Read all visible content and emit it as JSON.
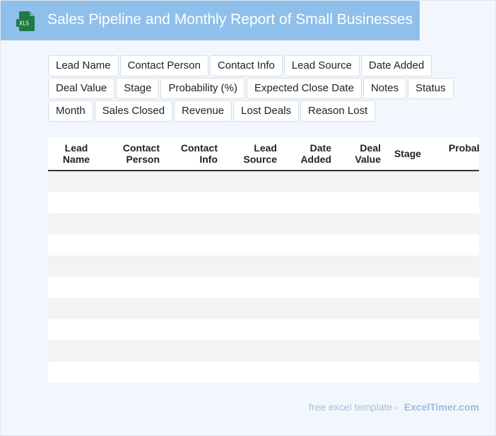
{
  "header": {
    "title": "Sales Pipeline and Monthly Report of Small Businesses",
    "icon_label": "XLS",
    "background_color": "#8fc0ec",
    "icon_color": "#1e7a45"
  },
  "chips": [
    [
      "Lead Name",
      "Contact Person",
      "Contact Info",
      "Lead Source",
      "Date Added"
    ],
    [
      "Deal Value",
      "Stage",
      "Probability (%)",
      "Expected Close Date",
      "Notes",
      "Status"
    ],
    [
      "Month",
      "Sales Closed",
      "Revenue",
      "Lost Deals",
      "Reason Lost"
    ]
  ],
  "table": {
    "headers": [
      [
        "Lead",
        "Name"
      ],
      [
        "Contact",
        "Person"
      ],
      [
        "Contact",
        "Info"
      ],
      [
        "Lead",
        "Source"
      ],
      [
        "Date",
        "Added"
      ],
      [
        "Deal",
        "Value"
      ],
      [
        "Stage"
      ],
      [
        "Probability",
        "(%)"
      ]
    ],
    "empty_rows": 10
  },
  "footer": {
    "prefix": "free excel template -",
    "brand": "ExcelTimer.com"
  }
}
